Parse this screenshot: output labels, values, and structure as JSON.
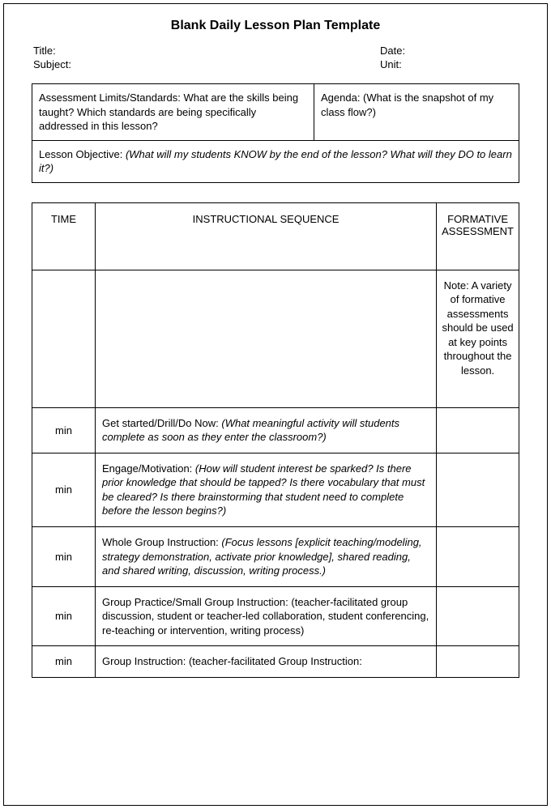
{
  "title": "Blank Daily Lesson Plan Template",
  "header": {
    "title_label": "Title:",
    "subject_label": "Subject:",
    "date_label": "Date:",
    "unit_label": "Unit:"
  },
  "box": {
    "assessment_label": "Assessment Limits/Standards:",
    "assessment_text": " What are the skills being taught? Which standards are being specifically addressed in this lesson?",
    "agenda_label": "Agenda:",
    "agenda_text": " (What is the snapshot of my class flow?)",
    "objective_label": "Lesson Objective:",
    "objective_text": " (What will my students KNOW by the end of the lesson?  What will they DO to learn it?)"
  },
  "table": {
    "headers": {
      "time": "TIME",
      "sequence": "INSTRUCTIONAL SEQUENCE",
      "assessment": "FORMATIVE ASSESSMENT"
    },
    "note": "Note: A variety of formative assessments should be used at key points throughout the lesson.",
    "min_label": "min",
    "rows": [
      {
        "label": "Get started/Drill/Do Now:",
        "text": " (What meaningful activity will students complete as soon as they enter the classroom?)"
      },
      {
        "label": "Engage/Motivation:",
        "text": " (How will  student interest be sparked?  Is there prior knowledge that should be tapped?  Is there vocabulary that must be cleared?  Is there brainstorming that student need to complete before the lesson begins?)"
      },
      {
        "label": "Whole Group Instruction:",
        "text": " (Focus lessons [explicit teaching/modeling, strategy demonstration, activate prior knowledge], shared reading, and shared writing, discussion, writing process.)"
      },
      {
        "label": "Group Practice/Small Group Instruction:",
        "text": " (teacher-facilitated group discussion, student or teacher-led collaboration, student conferencing, re-teaching or intervention, writing process)"
      },
      {
        "label": "Group Instruction:",
        "text": " (teacher-facilitated  Group Instruction:"
      }
    ]
  }
}
